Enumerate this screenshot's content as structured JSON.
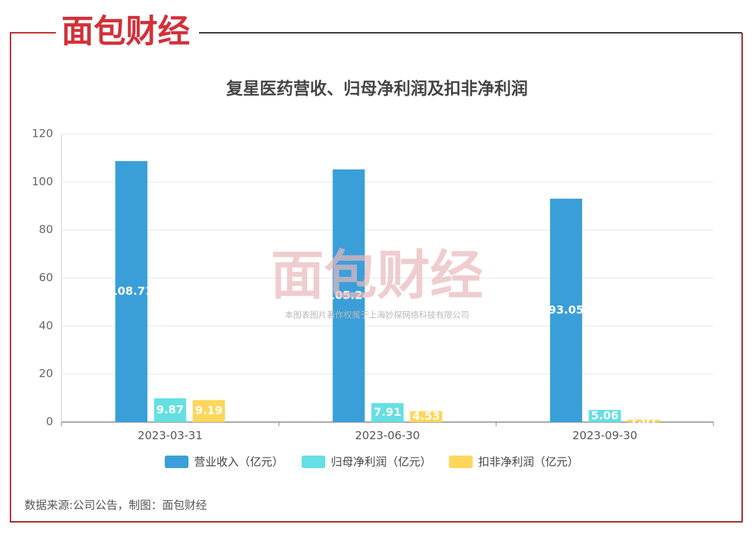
{
  "brand": "面包财经",
  "watermark": {
    "logo": "面包财经",
    "copyright": "本图表图片著作权属于上海妙探网络科技有限公司"
  },
  "source": "数据来源:公司公告，制图：面包财经",
  "chart_data": {
    "type": "bar",
    "title": "复星医药营收、归母净利润及扣非净利润",
    "categories": [
      "2023-03-31",
      "2023-06-30",
      "2023-09-30"
    ],
    "series": [
      {
        "name": "营业收入（亿元）",
        "color": "#3a9fd8",
        "values": [
          108.71,
          105.24,
          93.05
        ]
      },
      {
        "name": "归母净利润（亿元）",
        "color": "#64dfe2",
        "values": [
          9.87,
          7.91,
          5.06
        ]
      },
      {
        "name": "扣非净利润（亿元）",
        "color": "#fdd65c",
        "values": [
          9.19,
          4.53,
          1.01
        ]
      }
    ],
    "ylim": [
      0,
      120
    ],
    "yticks": [
      0,
      20,
      40,
      60,
      80,
      100,
      120
    ],
    "grid": true,
    "legend": "bottom"
  }
}
